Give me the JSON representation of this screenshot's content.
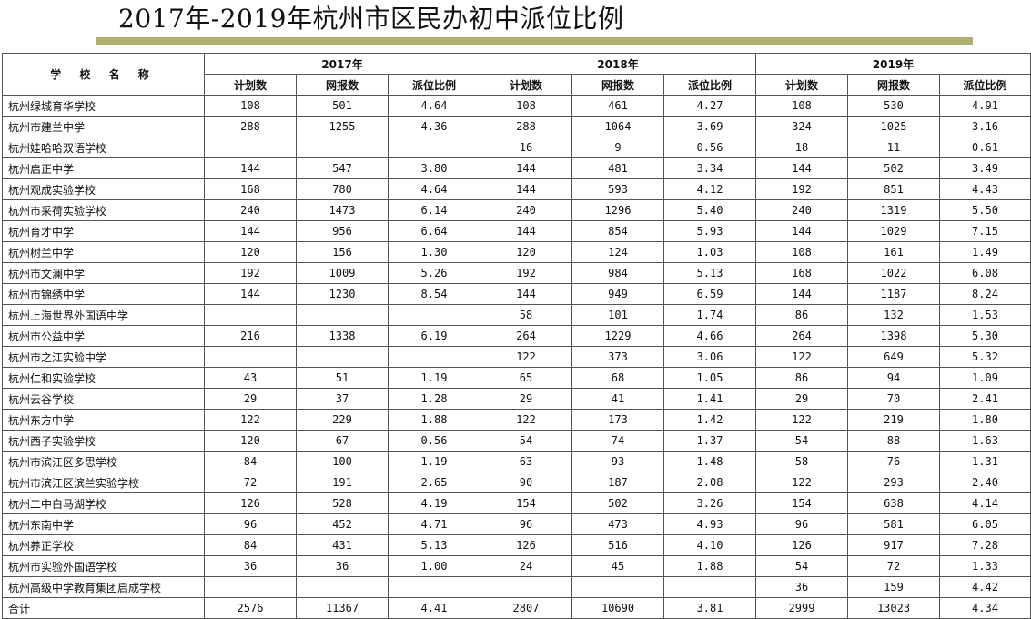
{
  "title": "2017年-2019年杭州市区民办初中派位比例",
  "headers": {
    "school": "学 校 名 称",
    "years": [
      "2017年",
      "2018年",
      "2019年"
    ],
    "cols": [
      "计划数",
      "网报数",
      "派位比例"
    ]
  },
  "rows": [
    {
      "name": "杭州绿城育华学校",
      "v": [
        "108",
        "501",
        "4.64",
        "108",
        "461",
        "4.27",
        "108",
        "530",
        "4.91"
      ]
    },
    {
      "name": "杭州市建兰中学",
      "v": [
        "288",
        "1255",
        "4.36",
        "288",
        "1064",
        "3.69",
        "324",
        "1025",
        "3.16"
      ]
    },
    {
      "name": "杭州娃哈哈双语学校",
      "v": [
        "",
        "",
        "",
        "16",
        "9",
        "0.56",
        "18",
        "11",
        "0.61"
      ]
    },
    {
      "name": "杭州启正中学",
      "v": [
        "144",
        "547",
        "3.80",
        "144",
        "481",
        "3.34",
        "144",
        "502",
        "3.49"
      ]
    },
    {
      "name": "杭州观成实验学校",
      "v": [
        "168",
        "780",
        "4.64",
        "144",
        "593",
        "4.12",
        "192",
        "851",
        "4.43"
      ]
    },
    {
      "name": "杭州市采荷实验学校",
      "v": [
        "240",
        "1473",
        "6.14",
        "240",
        "1296",
        "5.40",
        "240",
        "1319",
        "5.50"
      ]
    },
    {
      "name": "杭州育才中学",
      "v": [
        "144",
        "956",
        "6.64",
        "144",
        "854",
        "5.93",
        "144",
        "1029",
        "7.15"
      ]
    },
    {
      "name": "杭州树兰中学",
      "v": [
        "120",
        "156",
        "1.30",
        "120",
        "124",
        "1.03",
        "108",
        "161",
        "1.49"
      ]
    },
    {
      "name": "杭州市文澜中学",
      "v": [
        "192",
        "1009",
        "5.26",
        "192",
        "984",
        "5.13",
        "168",
        "1022",
        "6.08"
      ]
    },
    {
      "name": "杭州市锦绣中学",
      "v": [
        "144",
        "1230",
        "8.54",
        "144",
        "949",
        "6.59",
        "144",
        "1187",
        "8.24"
      ]
    },
    {
      "name": "杭州上海世界外国语中学",
      "v": [
        "",
        "",
        "",
        "58",
        "101",
        "1.74",
        "86",
        "132",
        "1.53"
      ]
    },
    {
      "name": "杭州市公益中学",
      "v": [
        "216",
        "1338",
        "6.19",
        "264",
        "1229",
        "4.66",
        "264",
        "1398",
        "5.30"
      ]
    },
    {
      "name": "杭州市之江实验中学",
      "v": [
        "",
        "",
        "",
        "122",
        "373",
        "3.06",
        "122",
        "649",
        "5.32"
      ]
    },
    {
      "name": "杭州仁和实验学校",
      "v": [
        "43",
        "51",
        "1.19",
        "65",
        "68",
        "1.05",
        "86",
        "94",
        "1.09"
      ]
    },
    {
      "name": "杭州云谷学校",
      "v": [
        "29",
        "37",
        "1.28",
        "29",
        "41",
        "1.41",
        "29",
        "70",
        "2.41"
      ]
    },
    {
      "name": "杭州东方中学",
      "v": [
        "122",
        "229",
        "1.88",
        "122",
        "173",
        "1.42",
        "122",
        "219",
        "1.80"
      ]
    },
    {
      "name": "杭州西子实验学校",
      "v": [
        "120",
        "67",
        "0.56",
        "54",
        "74",
        "1.37",
        "54",
        "88",
        "1.63"
      ]
    },
    {
      "name": "杭州市滨江区多思学校",
      "v": [
        "84",
        "100",
        "1.19",
        "63",
        "93",
        "1.48",
        "58",
        "76",
        "1.31"
      ]
    },
    {
      "name": "杭州市滨江区滨兰实验学校",
      "v": [
        "72",
        "191",
        "2.65",
        "90",
        "187",
        "2.08",
        "122",
        "293",
        "2.40"
      ]
    },
    {
      "name": "杭州二中白马湖学校",
      "v": [
        "126",
        "528",
        "4.19",
        "154",
        "502",
        "3.26",
        "154",
        "638",
        "4.14"
      ]
    },
    {
      "name": "杭州东南中学",
      "v": [
        "96",
        "452",
        "4.71",
        "96",
        "473",
        "4.93",
        "96",
        "581",
        "6.05"
      ]
    },
    {
      "name": "杭州养正学校",
      "v": [
        "84",
        "431",
        "5.13",
        "126",
        "516",
        "4.10",
        "126",
        "917",
        "7.28"
      ]
    },
    {
      "name": "杭州市实验外国语学校",
      "v": [
        "36",
        "36",
        "1.00",
        "24",
        "45",
        "1.88",
        "54",
        "72",
        "1.33"
      ]
    },
    {
      "name": "杭州高级中学教育集团启成学校",
      "v": [
        "",
        "",
        "",
        "",
        "",
        "",
        "36",
        "159",
        "4.42"
      ]
    },
    {
      "name": "合计",
      "v": [
        "2576",
        "11367",
        "4.41",
        "2807",
        "10690",
        "3.81",
        "2999",
        "13023",
        "4.34"
      ]
    }
  ]
}
